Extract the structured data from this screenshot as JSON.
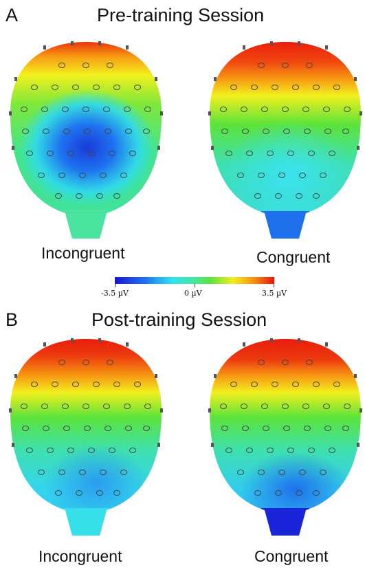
{
  "panel_a": {
    "letter": "A",
    "title": "Pre-training Session",
    "left_label": "Incongruent",
    "right_label": "Congruent"
  },
  "colorbar": {
    "min_label": "-3.5 µV",
    "mid_label": "0 µV",
    "max_label": "3.5 µV"
  },
  "panel_b": {
    "letter": "B",
    "title": "Post-training Session",
    "left_label": "Incongruent",
    "right_label": "Congruent"
  },
  "colors": {
    "red": "#e8160c",
    "orange": "#f79a12",
    "yellow": "#f2f01e",
    "green": "#5ce33a",
    "cyan": "#2ee3f0",
    "blue": "#1e6cf2",
    "deep_blue": "#1a14d8"
  }
}
